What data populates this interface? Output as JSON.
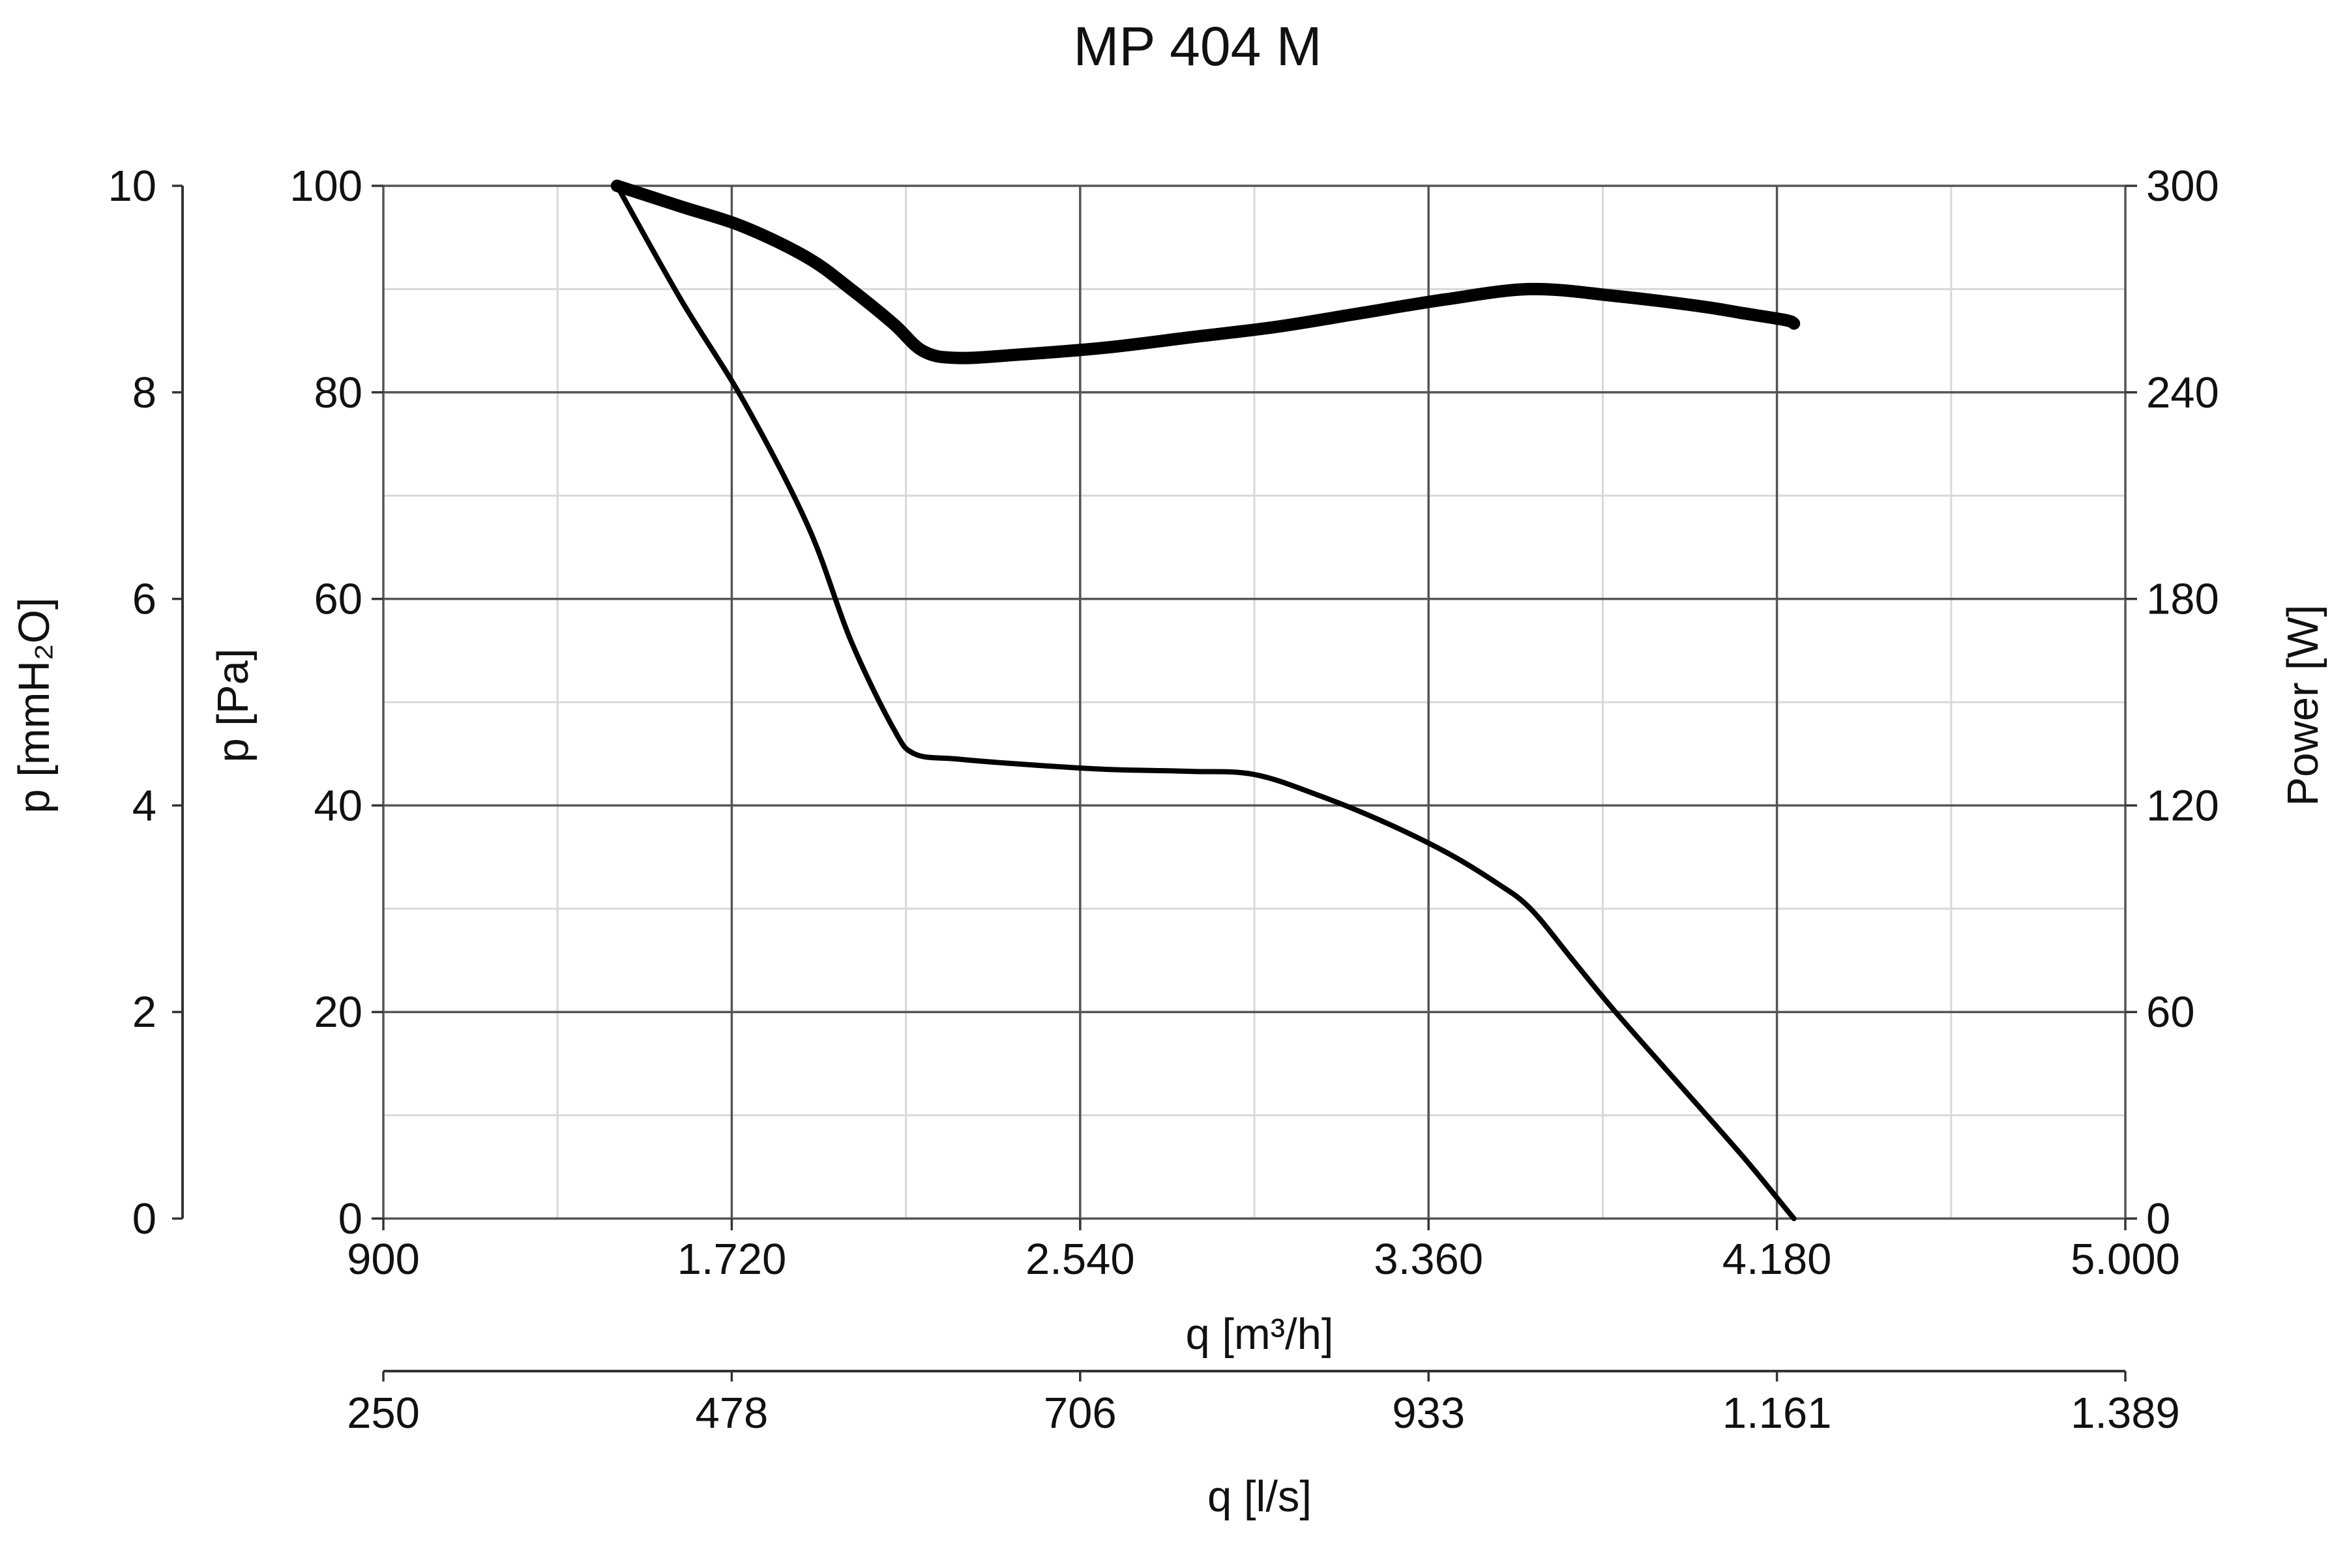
{
  "chart_data": {
    "type": "line",
    "title": "MP 404 M",
    "x_axis": {
      "label": "q [m³/h]",
      "range": [
        900,
        5000
      ],
      "ticks": [
        900,
        1720,
        2540,
        3360,
        4180,
        5000
      ],
      "tick_labels": [
        "900",
        "1.720",
        "2.540",
        "3.360",
        "4.180",
        "5.000"
      ]
    },
    "x_axis_secondary": {
      "label": "q [l/s]",
      "range": [
        250,
        1389
      ],
      "ticks": [
        250,
        478,
        706,
        933,
        1161,
        1389
      ],
      "tick_labels": [
        "250",
        "478",
        "706",
        "933",
        "1.161",
        "1.389"
      ]
    },
    "y_axis_left": {
      "label": "p [Pa]",
      "range": [
        0,
        100
      ],
      "ticks": [
        0,
        20,
        40,
        60,
        80,
        100
      ],
      "tick_labels": [
        "0",
        "20",
        "40",
        "60",
        "80",
        "100"
      ]
    },
    "y_axis_left_secondary": {
      "label": "p [mmH₂O]",
      "range": [
        0,
        10
      ],
      "ticks": [
        0,
        2,
        4,
        6,
        8,
        10
      ],
      "tick_labels": [
        "0",
        "2",
        "4",
        "6",
        "8",
        "10"
      ]
    },
    "y_axis_right": {
      "label": "Power [W]",
      "range": [
        0,
        300
      ],
      "ticks": [
        0,
        60,
        120,
        180,
        240,
        300
      ],
      "tick_labels": [
        "0",
        "60",
        "120",
        "180",
        "240",
        "300"
      ]
    },
    "grid": true,
    "series": [
      {
        "axis": "left",
        "line_weight": "thin",
        "color": "#000000",
        "points": [
          [
            1450,
            100
          ],
          [
            1600,
            89
          ],
          [
            1750,
            79
          ],
          [
            1900,
            67
          ],
          [
            2000,
            56
          ],
          [
            2100,
            47.5
          ],
          [
            2150,
            45
          ],
          [
            2250,
            44.5
          ],
          [
            2400,
            44
          ],
          [
            2600,
            43.5
          ],
          [
            2800,
            43.3
          ],
          [
            2950,
            43
          ],
          [
            3100,
            41
          ],
          [
            3250,
            38.5
          ],
          [
            3400,
            35.5
          ],
          [
            3520,
            32.5
          ],
          [
            3600,
            30
          ],
          [
            3700,
            25
          ],
          [
            3800,
            20
          ],
          [
            3950,
            13
          ],
          [
            4100,
            6
          ],
          [
            4200,
            1
          ],
          [
            4220,
            0
          ]
        ]
      },
      {
        "axis": "right",
        "line_weight": "thick",
        "color": "#000000",
        "points": [
          [
            1450,
            300
          ],
          [
            1600,
            294
          ],
          [
            1750,
            288
          ],
          [
            1900,
            279
          ],
          [
            2000,
            270
          ],
          [
            2100,
            260
          ],
          [
            2170,
            252
          ],
          [
            2250,
            250
          ],
          [
            2400,
            251
          ],
          [
            2600,
            253
          ],
          [
            2800,
            256
          ],
          [
            3000,
            259
          ],
          [
            3200,
            263
          ],
          [
            3400,
            267
          ],
          [
            3600,
            270
          ],
          [
            3800,
            268
          ],
          [
            4000,
            265
          ],
          [
            4100,
            263
          ],
          [
            4200,
            261
          ],
          [
            4220,
            260
          ]
        ]
      }
    ]
  }
}
